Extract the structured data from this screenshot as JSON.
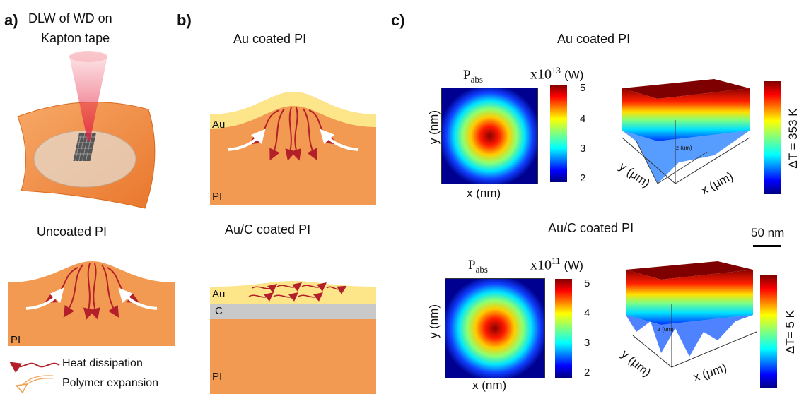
{
  "panel_a": {
    "letter": "a)",
    "title_line1": "DLW of WD on",
    "title_line2": "Kapton tape",
    "uncoated_title": "Uncoated PI",
    "uncoated_layer_pi": "PI",
    "legend": {
      "heat": "Heat dissipation",
      "expansion": "Polymer expansion"
    }
  },
  "panel_b": {
    "letter": "b)",
    "top_title": "Au coated PI",
    "top_layer_au": "Au",
    "top_layer_pi": "PI",
    "bottom_title": "Au/C coated PI",
    "bottom_layer_au": "Au",
    "bottom_layer_c": "C",
    "bottom_layer_pi": "PI"
  },
  "panel_c": {
    "letter": "c)",
    "scale_bar": "50 nm",
    "rows": [
      {
        "title": "Au coated PI",
        "map_title_main": "P",
        "map_title_sub": "abs",
        "exp_base": "x10",
        "exp_sup": "13",
        "exp_unit": "(W)",
        "ticks": [
          "5",
          "4",
          "3",
          "2"
        ],
        "x_label": "x (nm)",
        "y_label": "y (nm)",
        "surf_x": "x (μm)",
        "surf_y": "y (μm)",
        "surf_z": "z (um)",
        "delta_t": "ΔT = 353 K"
      },
      {
        "title": "Au/C coated PI",
        "map_title_main": "P",
        "map_title_sub": "abs",
        "exp_base": "x10",
        "exp_sup": "11",
        "exp_unit": "(W)",
        "ticks": [
          "5",
          "4",
          "3",
          "2"
        ],
        "x_label": "x (nm)",
        "y_label": "y (nm)",
        "surf_x": "x (μm)",
        "surf_y": "y (μm)",
        "surf_z": "z (um)",
        "delta_t": "ΔT= 5 K"
      }
    ]
  },
  "colors": {
    "pi_orange": "#f39a52",
    "au_yellow": "#fde68a",
    "carbon_gray": "#c9c9c9",
    "heat_red": "#b3202a",
    "laser_red": "#f06070"
  }
}
